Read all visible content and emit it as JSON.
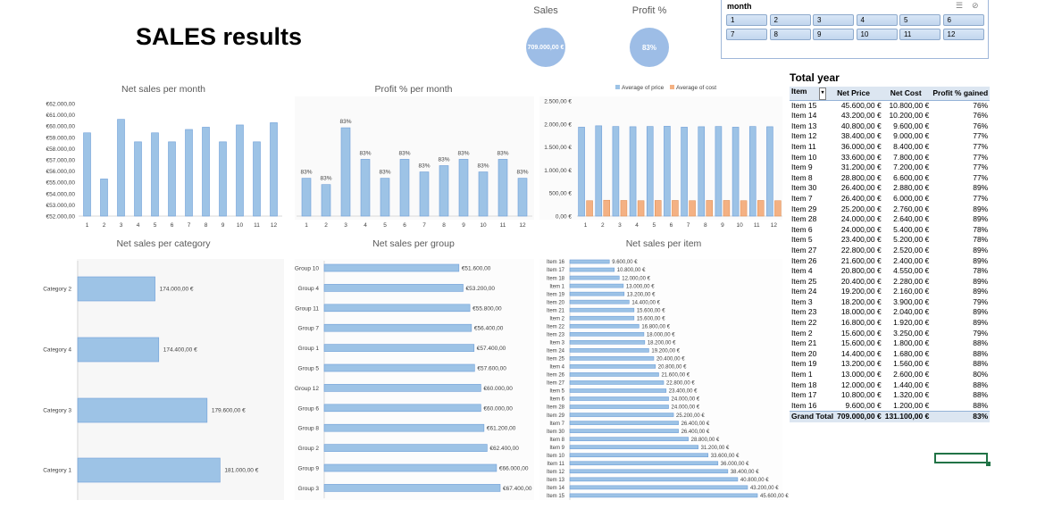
{
  "title": "SALES results",
  "kpis": {
    "sales_label": "Sales",
    "sales_value": "709.000,00 €",
    "profit_label": "Profit %",
    "profit_value": "83%"
  },
  "slicer": {
    "header": "month",
    "items": [
      "1",
      "2",
      "3",
      "4",
      "5",
      "6",
      "7",
      "8",
      "9",
      "10",
      "11",
      "12"
    ]
  },
  "charts": {
    "month_title": "Net sales per month",
    "profit_title": "Profit % per month",
    "price_cost_legend": [
      "Average of price",
      "Average of cost"
    ],
    "category_title": "Net sales per category",
    "group_title": "Net sales per group",
    "item_title": "Net sales per item"
  },
  "colors": {
    "bar": "#9dc3e6",
    "bar_dark": "#6f9fd8",
    "cost": "#f4b183",
    "accent": "#217346"
  },
  "chart_data": [
    {
      "type": "bar",
      "title": "Net sales per month",
      "categories": [
        "1",
        "2",
        "3",
        "4",
        "5",
        "6",
        "7",
        "8",
        "9",
        "10",
        "11",
        "12"
      ],
      "values": [
        59400,
        55300,
        60600,
        58600,
        59400,
        58600,
        59700,
        59900,
        58600,
        60100,
        58600,
        60300
      ],
      "y_ticks": [
        "€52.000,00",
        "€53.000,00",
        "€54.000,00",
        "€55.000,00",
        "€56.000,00",
        "€57.000,00",
        "€58.000,00",
        "€59.000,00",
        "€60.000,00",
        "€61.000,00",
        "€62.000,00"
      ],
      "ylim": [
        52000,
        62000
      ]
    },
    {
      "type": "bar",
      "title": "Profit % per month",
      "categories": [
        "1",
        "2",
        "3",
        "4",
        "5",
        "6",
        "7",
        "8",
        "9",
        "10",
        "11",
        "12"
      ],
      "values": [
        82.6,
        82.5,
        83.4,
        82.9,
        82.6,
        82.9,
        82.7,
        82.8,
        82.9,
        82.7,
        82.9,
        82.6
      ],
      "labels": [
        "83%",
        "83%",
        "83%",
        "83%",
        "83%",
        "83%",
        "83%",
        "83%",
        "83%",
        "83%",
        "83%",
        "83%"
      ],
      "ylim": [
        82.0,
        83.5
      ]
    },
    {
      "type": "bar",
      "categories": [
        "1",
        "2",
        "3",
        "4",
        "5",
        "6",
        "7",
        "8",
        "9",
        "10",
        "11",
        "12"
      ],
      "series": [
        {
          "name": "Average of price",
          "values": [
            1930,
            1960,
            1945,
            1940,
            1945,
            1950,
            1930,
            1940,
            1945,
            1930,
            1945,
            1940
          ]
        },
        {
          "name": "Average of cost",
          "values": [
            335,
            345,
            340,
            335,
            340,
            340,
            335,
            340,
            340,
            335,
            340,
            335
          ]
        }
      ],
      "y_ticks": [
        "0,00 €",
        "500,00 €",
        "1.000,00 €",
        "1.500,00 €",
        "2.000,00 €",
        "2.500,00 €"
      ],
      "ylim": [
        0,
        2500
      ],
      "legend": "top"
    },
    {
      "type": "bar",
      "orientation": "horizontal",
      "title": "Net sales per category",
      "categories": [
        "Category 2",
        "Category 4",
        "Category 3",
        "Category 1"
      ],
      "values": [
        174000,
        174400,
        179600,
        181000
      ],
      "labels": [
        "174.000,00 €",
        "174.400,00 €",
        "179.600,00 €",
        "181.000,00 €"
      ],
      "xlim": [
        170000,
        182000
      ]
    },
    {
      "type": "bar",
      "orientation": "horizontal",
      "title": "Net sales per group",
      "categories": [
        "Group 10",
        "Group 4",
        "Group 11",
        "Group 7",
        "Group 1",
        "Group 5",
        "Group 12",
        "Group 6",
        "Group 8",
        "Group 2",
        "Group 9",
        "Group 3"
      ],
      "values": [
        51600,
        53200,
        55800,
        56400,
        57400,
        57600,
        60000,
        60000,
        61200,
        62400,
        66000,
        67400
      ],
      "labels": [
        "€51.600,00",
        "€53.200,00",
        "€55.800,00",
        "€56.400,00",
        "€57.400,00",
        "€57.600,00",
        "€60.000,00",
        "€60.000,00",
        "€61.200,00",
        "€62.400,00",
        "€66.000,00",
        "€67.400,00"
      ]
    },
    {
      "type": "bar",
      "orientation": "horizontal",
      "title": "Net sales per item",
      "categories": [
        "Item 16",
        "Item 17",
        "Item 18",
        "Item 1",
        "Item 19",
        "Item 20",
        "Item 21",
        "Item 2",
        "Item 22",
        "Item 23",
        "Item 3",
        "Item 24",
        "Item 25",
        "Item 4",
        "Item 26",
        "Item 27",
        "Item 5",
        "Item 6",
        "Item 28",
        "Item 29",
        "Item 7",
        "Item 30",
        "Item 8",
        "Item 9",
        "Item 10",
        "Item 11",
        "Item 12",
        "Item 13",
        "Item 14",
        "Item 15"
      ],
      "values": [
        9600,
        10800,
        12000,
        13000,
        13200,
        14400,
        15600,
        15600,
        16800,
        18000,
        18200,
        19200,
        20400,
        20800,
        21600,
        22800,
        23400,
        24000,
        24000,
        25200,
        26400,
        26400,
        28800,
        31200,
        33600,
        36000,
        38400,
        40800,
        43200,
        45600
      ],
      "labels": [
        "9.600,00 €",
        "10.800,00 €",
        "12.000,00 €",
        "13.000,00 €",
        "13.200,00 €",
        "14.400,00 €",
        "15.600,00 €",
        "15.600,00 €",
        "16.800,00 €",
        "18.000,00 €",
        "18.200,00 €",
        "19.200,00 €",
        "20.400,00 €",
        "20.800,00 €",
        "21.600,00 €",
        "22.800,00 €",
        "23.400,00 €",
        "24.000,00 €",
        "24.000,00 €",
        "25.200,00 €",
        "26.400,00 €",
        "26.400,00 €",
        "28.800,00 €",
        "31.200,00 €",
        "33.600,00 €",
        "36.000,00 €",
        "38.400,00 €",
        "40.800,00 €",
        "43.200,00 €",
        "45.600,00 €"
      ]
    }
  ],
  "pivot": {
    "title": "Total year",
    "headers": [
      "Item",
      "Net Price",
      "Net Cost",
      "Profit % gained"
    ],
    "rows": [
      [
        "Item 15",
        "45.600,00 €",
        "10.800,00 €",
        "76%"
      ],
      [
        "Item 14",
        "43.200,00 €",
        "10.200,00 €",
        "76%"
      ],
      [
        "Item 13",
        "40.800,00 €",
        "9.600,00 €",
        "76%"
      ],
      [
        "Item 12",
        "38.400,00 €",
        "9.000,00 €",
        "77%"
      ],
      [
        "Item 11",
        "36.000,00 €",
        "8.400,00 €",
        "77%"
      ],
      [
        "Item 10",
        "33.600,00 €",
        "7.800,00 €",
        "77%"
      ],
      [
        "Item 9",
        "31.200,00 €",
        "7.200,00 €",
        "77%"
      ],
      [
        "Item 8",
        "28.800,00 €",
        "6.600,00 €",
        "77%"
      ],
      [
        "Item 30",
        "26.400,00 €",
        "2.880,00 €",
        "89%"
      ],
      [
        "Item 7",
        "26.400,00 €",
        "6.000,00 €",
        "77%"
      ],
      [
        "Item 29",
        "25.200,00 €",
        "2.760,00 €",
        "89%"
      ],
      [
        "Item 28",
        "24.000,00 €",
        "2.640,00 €",
        "89%"
      ],
      [
        "Item 6",
        "24.000,00 €",
        "5.400,00 €",
        "78%"
      ],
      [
        "Item 5",
        "23.400,00 €",
        "5.200,00 €",
        "78%"
      ],
      [
        "Item 27",
        "22.800,00 €",
        "2.520,00 €",
        "89%"
      ],
      [
        "Item 26",
        "21.600,00 €",
        "2.400,00 €",
        "89%"
      ],
      [
        "Item 4",
        "20.800,00 €",
        "4.550,00 €",
        "78%"
      ],
      [
        "Item 25",
        "20.400,00 €",
        "2.280,00 €",
        "89%"
      ],
      [
        "Item 24",
        "19.200,00 €",
        "2.160,00 €",
        "89%"
      ],
      [
        "Item 3",
        "18.200,00 €",
        "3.900,00 €",
        "79%"
      ],
      [
        "Item 23",
        "18.000,00 €",
        "2.040,00 €",
        "89%"
      ],
      [
        "Item 22",
        "16.800,00 €",
        "1.920,00 €",
        "89%"
      ],
      [
        "Item 2",
        "15.600,00 €",
        "3.250,00 €",
        "79%"
      ],
      [
        "Item 21",
        "15.600,00 €",
        "1.800,00 €",
        "88%"
      ],
      [
        "Item 20",
        "14.400,00 €",
        "1.680,00 €",
        "88%"
      ],
      [
        "Item 19",
        "13.200,00 €",
        "1.560,00 €",
        "88%"
      ],
      [
        "Item 1",
        "13.000,00 €",
        "2.600,00 €",
        "80%"
      ],
      [
        "Item 18",
        "12.000,00 €",
        "1.440,00 €",
        "88%"
      ],
      [
        "Item 17",
        "10.800,00 €",
        "1.320,00 €",
        "88%"
      ],
      [
        "Item 16",
        "9.600,00 €",
        "1.200,00 €",
        "88%"
      ]
    ],
    "total": [
      "Grand Total",
      "709.000,00 €",
      "131.100,00 €",
      "83%"
    ]
  }
}
